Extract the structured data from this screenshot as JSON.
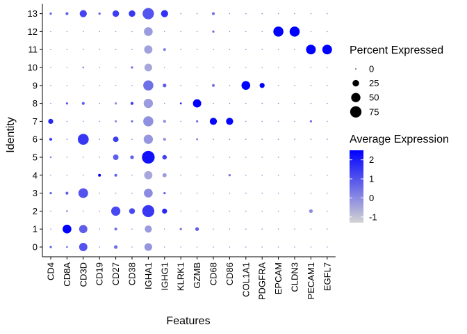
{
  "chart_data": {
    "type": "dotplot",
    "xlabel": "Features",
    "ylabel": "Identity",
    "features": [
      "CD4",
      "CD8A",
      "CD3D",
      "CD19",
      "CD27",
      "CD38",
      "IGHA1",
      "IGHG1",
      "KLRK1",
      "GZMB",
      "CD68",
      "CD86",
      "COL1A1",
      "PDGFRA",
      "EPCAM",
      "CLDN3",
      "PECAM1",
      "EGFL7"
    ],
    "identities": [
      "0",
      "1",
      "2",
      "3",
      "4",
      "5",
      "6",
      "7",
      "8",
      "9",
      "10",
      "11",
      "12",
      "13"
    ],
    "color_scale": {
      "low": "#d3d3d3",
      "high": "#0000ff",
      "min": -1.3,
      "max": 2.5
    },
    "size_legend": {
      "title": "Percent Expressed",
      "breaks": [
        0,
        25,
        50,
        75
      ]
    },
    "color_legend": {
      "title": "Average Expression",
      "breaks": [
        -1,
        0,
        1,
        2
      ]
    },
    "rows": [
      {
        "identity": "0",
        "pct": [
          3,
          2,
          40,
          0,
          8,
          0,
          35,
          0,
          0,
          0,
          0,
          0,
          0,
          0,
          0,
          0,
          0,
          0
        ],
        "avg": [
          0.8,
          0.5,
          1.0,
          0,
          0.5,
          0,
          -0.2,
          0,
          0,
          0,
          0,
          0,
          0,
          0,
          0,
          0,
          0,
          0
        ]
      },
      {
        "identity": "1",
        "pct": [
          0,
          45,
          40,
          0,
          5,
          0,
          30,
          0,
          3,
          8,
          0,
          0,
          0,
          0,
          0,
          0,
          0,
          0
        ],
        "avg": [
          0,
          2.5,
          0.8,
          0,
          0.5,
          0,
          -0.3,
          0,
          0.5,
          0.8,
          0,
          0,
          0,
          0,
          0,
          0,
          0,
          0
        ]
      },
      {
        "identity": "2",
        "pct": [
          0,
          2,
          0,
          0,
          50,
          20,
          85,
          15,
          0,
          0,
          0,
          0,
          0,
          0,
          0,
          0,
          8,
          0
        ],
        "avg": [
          0,
          0,
          0,
          0,
          1.2,
          1.2,
          1.5,
          1.8,
          0,
          0,
          0,
          0,
          0,
          0,
          0,
          0,
          0,
          0
        ]
      },
      {
        "identity": "3",
        "pct": [
          3,
          5,
          55,
          0,
          0,
          0,
          45,
          3,
          0,
          0,
          0,
          0,
          0,
          0,
          0,
          0,
          0,
          0
        ],
        "avg": [
          0.8,
          0.8,
          1.0,
          0,
          0,
          0,
          0,
          0.8,
          0,
          0,
          0,
          0,
          0,
          0,
          0,
          0,
          0,
          0
        ]
      },
      {
        "identity": "4",
        "pct": [
          0,
          0,
          0,
          5,
          5,
          0,
          40,
          10,
          0,
          0,
          0,
          3,
          0,
          0,
          0,
          0,
          0,
          0
        ],
        "avg": [
          0,
          0,
          0,
          2.5,
          0.8,
          0,
          -0.5,
          -0.3,
          0,
          0,
          0,
          0.5,
          0,
          0,
          0,
          0,
          0,
          0
        ]
      },
      {
        "identity": "5",
        "pct": [
          2,
          0,
          0,
          0,
          18,
          8,
          95,
          12,
          0,
          0,
          0,
          0,
          0,
          0,
          0,
          0,
          0,
          0
        ],
        "avg": [
          0,
          0,
          0,
          0,
          0.8,
          0.8,
          2.2,
          1.3,
          0,
          0,
          0,
          0,
          0,
          0,
          0,
          0,
          0,
          0
        ]
      },
      {
        "identity": "6",
        "pct": [
          5,
          0,
          70,
          0,
          18,
          0,
          50,
          5,
          0,
          2,
          0,
          0,
          0,
          0,
          0,
          0,
          0,
          0
        ],
        "avg": [
          1.5,
          0,
          1.5,
          0,
          1.4,
          0,
          -0.2,
          0,
          0,
          0.5,
          0,
          0,
          0,
          0,
          0,
          0,
          0,
          0
        ]
      },
      {
        "identity": "7",
        "pct": [
          15,
          0,
          0,
          0,
          3,
          3,
          60,
          5,
          0,
          3,
          30,
          30,
          0,
          0,
          0,
          0,
          3,
          0
        ],
        "avg": [
          1.8,
          0,
          0,
          0,
          0,
          0.5,
          -0.1,
          0,
          0,
          0.5,
          2.4,
          2.4,
          0,
          0,
          0,
          0,
          0.5,
          0
        ]
      },
      {
        "identity": "8",
        "pct": [
          0,
          3,
          5,
          0,
          3,
          5,
          50,
          0,
          2,
          40,
          0,
          0,
          0,
          0,
          0,
          0,
          0,
          0
        ],
        "avg": [
          0,
          0.8,
          0.8,
          0,
          0,
          1.5,
          -0.3,
          0,
          2.0,
          2.5,
          0,
          0,
          0,
          0,
          0,
          0,
          0,
          0
        ]
      },
      {
        "identity": "9",
        "pct": [
          0,
          0,
          0,
          0,
          0,
          0,
          60,
          8,
          0,
          0,
          5,
          0,
          45,
          15,
          0,
          0,
          0,
          0
        ],
        "avg": [
          0,
          0,
          0,
          0,
          0,
          0,
          0.5,
          0.8,
          0,
          0,
          0.5,
          0,
          2.5,
          2.5,
          0,
          0,
          0,
          0
        ]
      },
      {
        "identity": "10",
        "pct": [
          0,
          0,
          2,
          0,
          0,
          3,
          35,
          0,
          0,
          0,
          0,
          0,
          0,
          0,
          0,
          0,
          0,
          0
        ],
        "avg": [
          0,
          0,
          0,
          0,
          0,
          0.5,
          -0.5,
          0,
          0,
          0,
          0,
          0,
          0,
          0,
          0,
          0,
          0,
          0
        ]
      },
      {
        "identity": "11",
        "pct": [
          0,
          0,
          0,
          0,
          0,
          0,
          40,
          5,
          0,
          0,
          0,
          0,
          0,
          0,
          0,
          0,
          55,
          55
        ],
        "avg": [
          0,
          0,
          0,
          0,
          0,
          0,
          -0.4,
          0.2,
          0,
          0,
          0,
          0,
          0,
          0,
          0,
          0,
          2.5,
          2.5
        ]
      },
      {
        "identity": "12",
        "pct": [
          0,
          0,
          0,
          0,
          0,
          0,
          45,
          0,
          0,
          0,
          3,
          0,
          0,
          0,
          60,
          60,
          0,
          0
        ],
        "avg": [
          0,
          0,
          0,
          0,
          0,
          0,
          -0.3,
          0,
          0,
          0,
          0.5,
          0,
          0,
          0,
          2.5,
          2.5,
          0,
          0
        ]
      },
      {
        "identity": "13",
        "pct": [
          3,
          5,
          30,
          3,
          25,
          25,
          75,
          30,
          0,
          0,
          5,
          0,
          0,
          0,
          0,
          0,
          0,
          0
        ],
        "avg": [
          0.8,
          0.8,
          1.3,
          0.8,
          1.4,
          1.5,
          1.0,
          1.6,
          0,
          0,
          0.5,
          0,
          0,
          0,
          0,
          0,
          0,
          0
        ]
      }
    ]
  }
}
